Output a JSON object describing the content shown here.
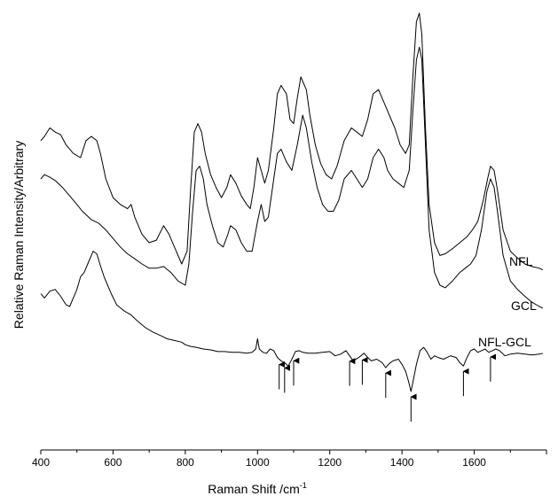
{
  "chart_data": {
    "type": "line",
    "title": "",
    "xlabel": "Raman Shift /cm",
    "xlabel_superscript": "-1",
    "ylabel": "Relative Raman Intensity/Arbitrary",
    "xlim": [
      400,
      1800
    ],
    "ylim": [
      0,
      500
    ],
    "xticks": [
      "400",
      "600",
      "800",
      "1000",
      "1200",
      "1400",
      "1600"
    ],
    "grid": false,
    "legend": "none",
    "series": [
      {
        "name": "NFL",
        "points": [
          [
            400,
            345
          ],
          [
            410,
            350
          ],
          [
            425,
            360
          ],
          [
            440,
            355
          ],
          [
            455,
            352
          ],
          [
            470,
            340
          ],
          [
            490,
            330
          ],
          [
            510,
            325
          ],
          [
            525,
            345
          ],
          [
            540,
            350
          ],
          [
            555,
            345
          ],
          [
            565,
            330
          ],
          [
            580,
            300
          ],
          [
            600,
            278
          ],
          [
            620,
            270
          ],
          [
            640,
            265
          ],
          [
            650,
            270
          ],
          [
            660,
            255
          ],
          [
            680,
            235
          ],
          [
            700,
            225
          ],
          [
            720,
            228
          ],
          [
            740,
            245
          ],
          [
            755,
            235
          ],
          [
            770,
            220
          ],
          [
            790,
            200
          ],
          [
            805,
            215
          ],
          [
            815,
            290
          ],
          [
            825,
            355
          ],
          [
            835,
            365
          ],
          [
            845,
            355
          ],
          [
            855,
            330
          ],
          [
            870,
            305
          ],
          [
            885,
            290
          ],
          [
            900,
            278
          ],
          [
            915,
            290
          ],
          [
            925,
            305
          ],
          [
            940,
            295
          ],
          [
            955,
            280
          ],
          [
            970,
            270
          ],
          [
            980,
            265
          ],
          [
            990,
            290
          ],
          [
            1000,
            325
          ],
          [
            1010,
            310
          ],
          [
            1020,
            295
          ],
          [
            1030,
            310
          ],
          [
            1045,
            360
          ],
          [
            1055,
            400
          ],
          [
            1065,
            410
          ],
          [
            1080,
            400
          ],
          [
            1090,
            370
          ],
          [
            1100,
            365
          ],
          [
            1110,
            395
          ],
          [
            1120,
            420
          ],
          [
            1135,
            405
          ],
          [
            1145,
            375
          ],
          [
            1160,
            340
          ],
          [
            1175,
            318
          ],
          [
            1190,
            305
          ],
          [
            1205,
            300
          ],
          [
            1220,
            315
          ],
          [
            1240,
            345
          ],
          [
            1260,
            360
          ],
          [
            1275,
            355
          ],
          [
            1290,
            350
          ],
          [
            1305,
            370
          ],
          [
            1320,
            400
          ],
          [
            1335,
            405
          ],
          [
            1350,
            390
          ],
          [
            1365,
            375
          ],
          [
            1380,
            360
          ],
          [
            1395,
            340
          ],
          [
            1410,
            330
          ],
          [
            1420,
            340
          ],
          [
            1430,
            420
          ],
          [
            1440,
            485
          ],
          [
            1448,
            495
          ],
          [
            1455,
            470
          ],
          [
            1465,
            360
          ],
          [
            1475,
            270
          ],
          [
            1490,
            225
          ],
          [
            1505,
            210
          ],
          [
            1520,
            212
          ],
          [
            1540,
            218
          ],
          [
            1560,
            225
          ],
          [
            1580,
            232
          ],
          [
            1595,
            240
          ],
          [
            1610,
            250
          ],
          [
            1625,
            275
          ],
          [
            1637,
            300
          ],
          [
            1645,
            315
          ],
          [
            1655,
            310
          ],
          [
            1665,
            285
          ],
          [
            1680,
            240
          ],
          [
            1700,
            215
          ],
          [
            1720,
            207
          ],
          [
            1740,
            200
          ],
          [
            1760,
            197
          ],
          [
            1780,
            195
          ],
          [
            1790,
            193
          ]
        ]
      },
      {
        "name": "GCL",
        "points": [
          [
            400,
            300
          ],
          [
            410,
            305
          ],
          [
            425,
            302
          ],
          [
            440,
            298
          ],
          [
            460,
            290
          ],
          [
            480,
            280
          ],
          [
            500,
            270
          ],
          [
            515,
            262
          ],
          [
            525,
            258
          ],
          [
            540,
            252
          ],
          [
            560,
            248
          ],
          [
            580,
            240
          ],
          [
            600,
            230
          ],
          [
            620,
            220
          ],
          [
            640,
            212
          ],
          [
            660,
            206
          ],
          [
            680,
            200
          ],
          [
            700,
            195
          ],
          [
            720,
            195
          ],
          [
            740,
            197
          ],
          [
            760,
            190
          ],
          [
            780,
            180
          ],
          [
            800,
            175
          ],
          [
            810,
            200
          ],
          [
            820,
            260
          ],
          [
            830,
            310
          ],
          [
            840,
            315
          ],
          [
            850,
            300
          ],
          [
            860,
            270
          ],
          [
            875,
            245
          ],
          [
            890,
            225
          ],
          [
            905,
            220
          ],
          [
            918,
            235
          ],
          [
            925,
            245
          ],
          [
            940,
            240
          ],
          [
            955,
            225
          ],
          [
            970,
            215
          ],
          [
            985,
            215
          ],
          [
            1000,
            250
          ],
          [
            1010,
            270
          ],
          [
            1020,
            250
          ],
          [
            1030,
            255
          ],
          [
            1045,
            300
          ],
          [
            1055,
            330
          ],
          [
            1065,
            335
          ],
          [
            1080,
            320
          ],
          [
            1095,
            310
          ],
          [
            1110,
            340
          ],
          [
            1125,
            375
          ],
          [
            1135,
            360
          ],
          [
            1150,
            320
          ],
          [
            1165,
            290
          ],
          [
            1180,
            270
          ],
          [
            1195,
            262
          ],
          [
            1210,
            262
          ],
          [
            1225,
            275
          ],
          [
            1240,
            300
          ],
          [
            1260,
            310
          ],
          [
            1275,
            300
          ],
          [
            1290,
            290
          ],
          [
            1305,
            300
          ],
          [
            1320,
            325
          ],
          [
            1335,
            335
          ],
          [
            1350,
            325
          ],
          [
            1360,
            310
          ],
          [
            1375,
            300
          ],
          [
            1390,
            295
          ],
          [
            1405,
            290
          ],
          [
            1420,
            310
          ],
          [
            1430,
            380
          ],
          [
            1440,
            440
          ],
          [
            1448,
            455
          ],
          [
            1455,
            440
          ],
          [
            1465,
            340
          ],
          [
            1475,
            240
          ],
          [
            1490,
            190
          ],
          [
            1505,
            175
          ],
          [
            1520,
            172
          ],
          [
            1540,
            180
          ],
          [
            1560,
            190
          ],
          [
            1575,
            195
          ],
          [
            1590,
            200
          ],
          [
            1605,
            210
          ],
          [
            1620,
            240
          ],
          [
            1635,
            285
          ],
          [
            1645,
            300
          ],
          [
            1655,
            290
          ],
          [
            1665,
            260
          ],
          [
            1680,
            210
          ],
          [
            1700,
            180
          ],
          [
            1720,
            170
          ],
          [
            1740,
            162
          ],
          [
            1760,
            155
          ],
          [
            1780,
            150
          ],
          [
            1790,
            148
          ]
        ]
      },
      {
        "name": "NFL-GCL",
        "points": [
          [
            400,
            165
          ],
          [
            410,
            160
          ],
          [
            425,
            168
          ],
          [
            440,
            170
          ],
          [
            455,
            162
          ],
          [
            470,
            152
          ],
          [
            480,
            150
          ],
          [
            490,
            160
          ],
          [
            500,
            170
          ],
          [
            510,
            185
          ],
          [
            520,
            190
          ],
          [
            530,
            200
          ],
          [
            545,
            215
          ],
          [
            555,
            212
          ],
          [
            565,
            198
          ],
          [
            575,
            185
          ],
          [
            585,
            175
          ],
          [
            595,
            165
          ],
          [
            610,
            152
          ],
          [
            630,
            145
          ],
          [
            650,
            140
          ],
          [
            670,
            132
          ],
          [
            690,
            125
          ],
          [
            710,
            120
          ],
          [
            730,
            116
          ],
          [
            750,
            112
          ],
          [
            770,
            110
          ],
          [
            790,
            108
          ],
          [
            800,
            105
          ],
          [
            815,
            103
          ],
          [
            830,
            102
          ],
          [
            850,
            100
          ],
          [
            870,
            99
          ],
          [
            890,
            97
          ],
          [
            910,
            97
          ],
          [
            930,
            96
          ],
          [
            950,
            96
          ],
          [
            970,
            95
          ],
          [
            985,
            96
          ],
          [
            995,
            100
          ],
          [
            1000,
            112
          ],
          [
            1005,
            100
          ],
          [
            1015,
            96
          ],
          [
            1025,
            95
          ],
          [
            1035,
            100
          ],
          [
            1045,
            98
          ],
          [
            1055,
            90
          ],
          [
            1065,
            86
          ],
          [
            1075,
            84
          ],
          [
            1085,
            80
          ],
          [
            1095,
            88
          ],
          [
            1105,
            97
          ],
          [
            1115,
            98
          ],
          [
            1125,
            96
          ],
          [
            1140,
            95
          ],
          [
            1160,
            95
          ],
          [
            1180,
            96
          ],
          [
            1200,
            97
          ],
          [
            1215,
            92
          ],
          [
            1230,
            94
          ],
          [
            1245,
            98
          ],
          [
            1255,
            92
          ],
          [
            1265,
            86
          ],
          [
            1280,
            90
          ],
          [
            1295,
            95
          ],
          [
            1305,
            90
          ],
          [
            1315,
            86
          ],
          [
            1330,
            88
          ],
          [
            1345,
            84
          ],
          [
            1355,
            78
          ],
          [
            1365,
            83
          ],
          [
            1375,
            86
          ],
          [
            1390,
            88
          ],
          [
            1400,
            82
          ],
          [
            1410,
            74
          ],
          [
            1418,
            62
          ],
          [
            1425,
            50
          ],
          [
            1432,
            65
          ],
          [
            1440,
            82
          ],
          [
            1450,
            98
          ],
          [
            1460,
            102
          ],
          [
            1470,
            96
          ],
          [
            1480,
            88
          ],
          [
            1490,
            92
          ],
          [
            1500,
            90
          ],
          [
            1515,
            88
          ],
          [
            1525,
            90
          ],
          [
            1535,
            92
          ],
          [
            1550,
            90
          ],
          [
            1560,
            84
          ],
          [
            1570,
            80
          ],
          [
            1580,
            90
          ],
          [
            1590,
            98
          ],
          [
            1600,
            100
          ],
          [
            1610,
            96
          ],
          [
            1620,
            98
          ],
          [
            1630,
            100
          ],
          [
            1640,
            96
          ],
          [
            1650,
            98
          ],
          [
            1660,
            100
          ],
          [
            1670,
            98
          ],
          [
            1685,
            92
          ],
          [
            1700,
            94
          ],
          [
            1720,
            95
          ],
          [
            1740,
            94
          ],
          [
            1760,
            93
          ],
          [
            1780,
            94
          ],
          [
            1790,
            95
          ]
        ]
      }
    ],
    "arrows_at": [
      1060,
      1075,
      1100,
      1255,
      1290,
      1355,
      1425,
      1570,
      1645
    ]
  }
}
